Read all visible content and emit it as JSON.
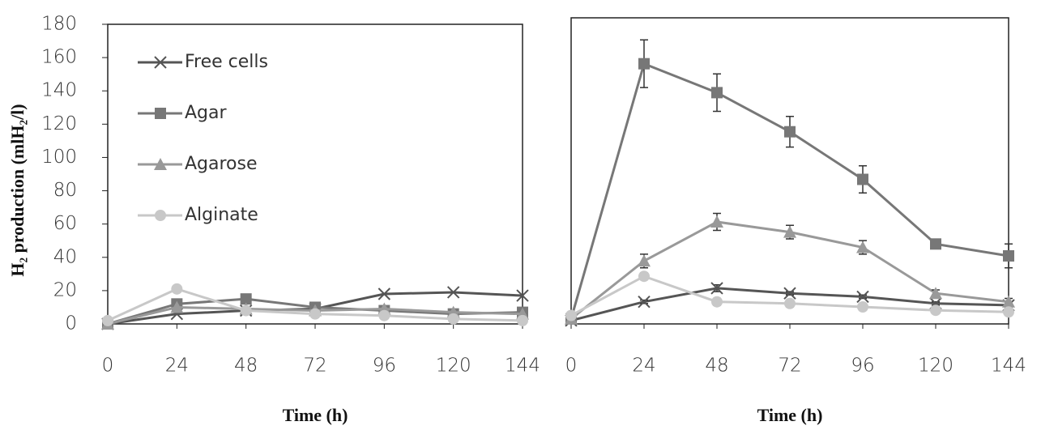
{
  "chart_data": [
    {
      "type": "line",
      "ylabel": "H₂ production (mlH₂/l)",
      "xlabel": "Time (h)",
      "x": [
        0,
        24,
        48,
        72,
        96,
        120,
        144
      ],
      "xlim": [
        0,
        144
      ],
      "xticks": [
        0,
        24,
        48,
        72,
        96,
        120,
        144
      ],
      "ylim": [
        0,
        180
      ],
      "yticks": [
        0,
        20,
        40,
        60,
        80,
        100,
        120,
        140,
        160,
        180
      ],
      "legend": "upper left",
      "series": [
        {
          "name": "Free cells",
          "color": "#555555",
          "marker": "x",
          "values": [
            0,
            6,
            8,
            9,
            18,
            19,
            17
          ]
        },
        {
          "name": "Agar",
          "color": "#777777",
          "marker": "square",
          "values": [
            0,
            12,
            15,
            10,
            8,
            6,
            7
          ]
        },
        {
          "name": "Agarose",
          "color": "#999999",
          "marker": "triangle",
          "values": [
            0,
            10,
            9,
            8,
            9,
            7,
            6
          ]
        },
        {
          "name": "Alginate",
          "color": "#c8c8c8",
          "marker": "circle",
          "values": [
            2,
            21,
            8,
            6,
            5,
            3,
            2
          ]
        }
      ]
    },
    {
      "type": "line",
      "xlabel": "Time (h)",
      "x": [
        0,
        24,
        48,
        72,
        96,
        120,
        144
      ],
      "xlim": [
        0,
        144
      ],
      "xticks": [
        0,
        24,
        48,
        72,
        96,
        120,
        144
      ],
      "ylim": [
        0,
        180
      ],
      "series": [
        {
          "color": "#555555",
          "marker": "x",
          "values": [
            2,
            13,
            21,
            18,
            16,
            12,
            11
          ],
          "errors": [
            0,
            1,
            2,
            1,
            1,
            1,
            1
          ]
        },
        {
          "color": "#777777",
          "marker": "square",
          "values": [
            3,
            153,
            136,
            113,
            85,
            47,
            40
          ],
          "errors": [
            0,
            14,
            11,
            9,
            8,
            2,
            7
          ]
        },
        {
          "color": "#999999",
          "marker": "triangle",
          "values": [
            3,
            37,
            60,
            54,
            45,
            18,
            13
          ],
          "errors": [
            0,
            4,
            5,
            4,
            4,
            2,
            2
          ]
        },
        {
          "color": "#c8c8c8",
          "marker": "circle",
          "values": [
            5,
            28,
            13,
            12,
            10,
            8,
            7
          ],
          "errors": [
            0,
            2,
            2,
            2,
            1,
            1,
            1
          ]
        }
      ]
    }
  ]
}
